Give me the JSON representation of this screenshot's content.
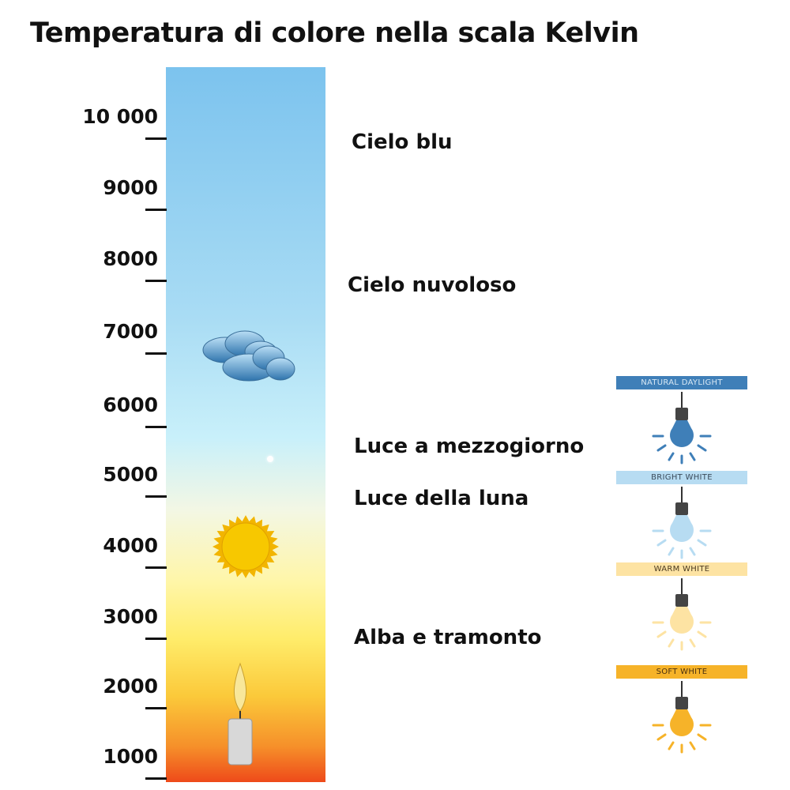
{
  "title": "Temperatura di colore nella scala Kelvin",
  "scale": {
    "ticks": [
      "10 000",
      "9000",
      "8000",
      "7000",
      "6000",
      "5000",
      "4000",
      "3000",
      "2000",
      "1000"
    ]
  },
  "labels": {
    "cielo_blu": "Cielo blu",
    "cielo_nuvoloso": "Cielo nuvoloso",
    "mezzogiorno": "Luce a mezzogiorno",
    "luna": "Luce della luna",
    "alba": "Alba e tramonto"
  },
  "icons": [
    "cloud-icon",
    "sun-icon",
    "candle-icon",
    "star-icon"
  ],
  "bulbs": [
    {
      "label": "NATURAL DAYLIGHT",
      "color": "#3f7fb8",
      "banner_text_color": "#d8e8f5"
    },
    {
      "label": "BRIGHT WHITE",
      "color": "#b7dcf2",
      "banner_text_color": "#3b4a5a"
    },
    {
      "label": "WARM WHITE",
      "color": "#fde3a3",
      "banner_text_color": "#4a3a20"
    },
    {
      "label": "SOFT WHITE",
      "color": "#f6b329",
      "banner_text_color": "#4a3010"
    }
  ]
}
